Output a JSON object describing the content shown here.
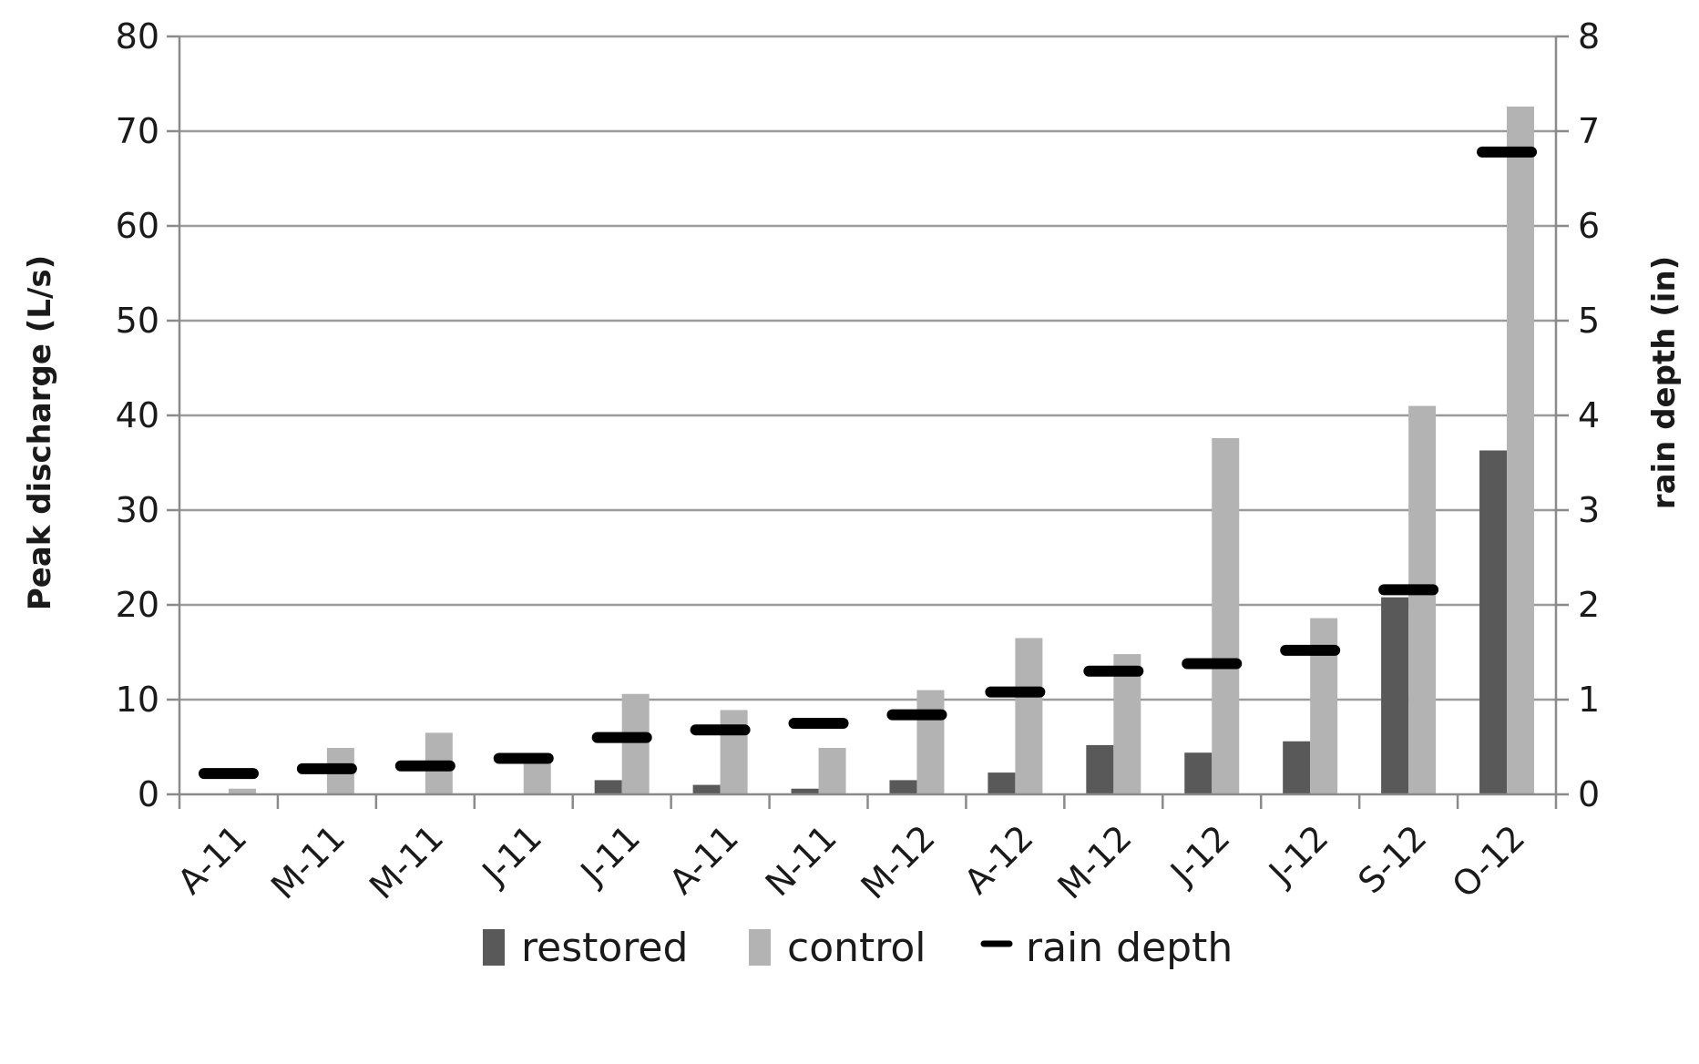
{
  "chart_data": {
    "type": "bar",
    "categories": [
      "A-11",
      "M-11",
      "M-11",
      "J-11",
      "J-11",
      "A-11",
      "N-11",
      "M-12",
      "A-12",
      "M-12",
      "J-12",
      "J-12",
      "S-12",
      "O-12"
    ],
    "series": [
      {
        "name": "restored",
        "type": "bar",
        "axis": "left",
        "color": "#595959",
        "values": [
          0,
          0,
          0,
          0,
          1.5,
          1.0,
          0.6,
          1.5,
          2.3,
          5.2,
          4.4,
          5.6,
          20.8,
          36.3
        ]
      },
      {
        "name": "control",
        "type": "bar",
        "axis": "left",
        "color": "#b3b3b3",
        "values": [
          0.6,
          4.9,
          6.5,
          3.5,
          10.6,
          8.9,
          4.9,
          11.0,
          16.5,
          14.8,
          37.6,
          18.6,
          41.0,
          72.6
        ]
      },
      {
        "name": "rain depth",
        "type": "marker",
        "axis": "right",
        "color": "#000000",
        "values": [
          0.22,
          0.27,
          0.3,
          0.38,
          0.6,
          0.68,
          0.75,
          0.84,
          1.08,
          1.3,
          1.38,
          1.52,
          2.16,
          6.78
        ]
      }
    ],
    "ylabel": "Peak discharge  (L/s)",
    "y2label": "rain depth (in)",
    "ylim": [
      0,
      80
    ],
    "y2lim": [
      0,
      8
    ],
    "yticks": [
      0,
      10,
      20,
      30,
      40,
      50,
      60,
      70,
      80
    ],
    "y2ticks": [
      0,
      1,
      2,
      3,
      4,
      5,
      6,
      7,
      8
    ],
    "grid": true,
    "legend": {
      "position": "bottom",
      "entries": [
        "restored",
        "control",
        "rain depth"
      ]
    }
  }
}
